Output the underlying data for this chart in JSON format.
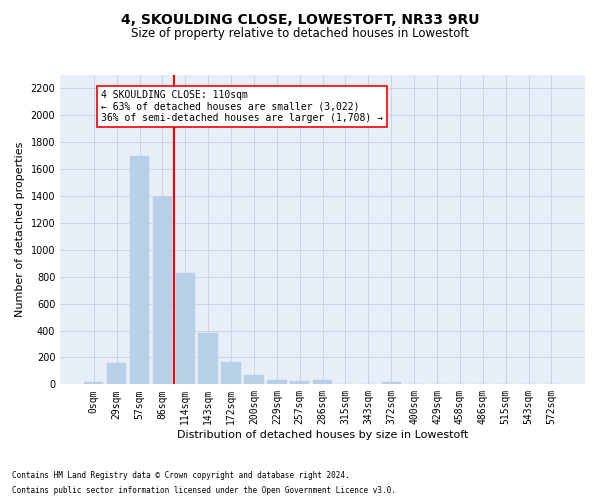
{
  "title": "4, SKOULDING CLOSE, LOWESTOFT, NR33 9RU",
  "subtitle": "Size of property relative to detached houses in Lowestoft",
  "xlabel": "Distribution of detached houses by size in Lowestoft",
  "ylabel": "Number of detached properties",
  "bar_labels": [
    "0sqm",
    "29sqm",
    "57sqm",
    "86sqm",
    "114sqm",
    "143sqm",
    "172sqm",
    "200sqm",
    "229sqm",
    "257sqm",
    "286sqm",
    "315sqm",
    "343sqm",
    "372sqm",
    "400sqm",
    "429sqm",
    "458sqm",
    "486sqm",
    "515sqm",
    "543sqm",
    "572sqm"
  ],
  "bar_values": [
    20,
    155,
    1700,
    1395,
    830,
    385,
    165,
    68,
    35,
    28,
    30,
    0,
    0,
    18,
    0,
    0,
    0,
    0,
    0,
    0,
    0
  ],
  "bar_color": "#b8cfe8",
  "bar_edgecolor": "#b8cfe8",
  "vline_color": "red",
  "vline_x_index": 4,
  "annotation_text": "4 SKOULDING CLOSE: 110sqm\n← 63% of detached houses are smaller (3,022)\n36% of semi-detached houses are larger (1,708) →",
  "annotation_box_color": "white",
  "annotation_box_edgecolor": "red",
  "ylim": [
    0,
    2300
  ],
  "yticks": [
    0,
    200,
    400,
    600,
    800,
    1000,
    1200,
    1400,
    1600,
    1800,
    2000,
    2200
  ],
  "grid_color": "#c8d4e8",
  "background_color": "#e8eef8",
  "footer_line1": "Contains HM Land Registry data © Crown copyright and database right 2024.",
  "footer_line2": "Contains public sector information licensed under the Open Government Licence v3.0.",
  "title_fontsize": 10,
  "subtitle_fontsize": 8.5,
  "xlabel_fontsize": 8,
  "ylabel_fontsize": 8,
  "tick_fontsize": 7,
  "annotation_fontsize": 7,
  "footer_fontsize": 5.5
}
